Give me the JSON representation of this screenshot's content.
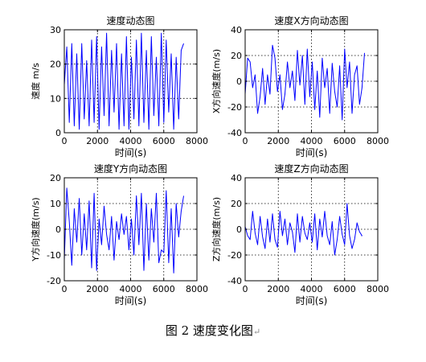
{
  "chart_data": [
    {
      "type": "line",
      "title": "速度动态图",
      "xlabel": "时间(s)",
      "ylabel": "速度 m/s",
      "xlim": [
        0,
        8000
      ],
      "ylim": [
        0,
        30
      ],
      "xticks": [
        0,
        2000,
        4000,
        6000,
        8000
      ],
      "yticks": [
        0,
        10,
        20,
        30
      ],
      "grid": "dotted",
      "line_color": "#0000ff",
      "series": [
        {
          "x": [
            0,
            150,
            300,
            450,
            600,
            750,
            900,
            1050,
            1200,
            1350,
            1500,
            1650,
            1800,
            1950,
            2100,
            2250,
            2400,
            2550,
            2700,
            2850,
            3000,
            3150,
            3300,
            3450,
            3600,
            3750,
            3900,
            4050,
            4200,
            4350,
            4500,
            4650,
            4800,
            4950,
            5100,
            5250,
            5400,
            5550,
            5700,
            5850,
            6000,
            6150,
            6300,
            6450,
            6600,
            6750,
            6900,
            7050,
            7200
          ],
          "values": [
            14,
            25,
            3,
            26,
            2,
            23,
            1,
            26,
            4,
            21,
            2,
            27,
            3,
            28,
            1,
            25,
            5,
            29,
            2,
            24,
            6,
            26,
            1,
            23,
            2,
            28,
            1,
            22,
            4,
            27,
            2,
            29,
            3,
            24,
            1,
            28,
            5,
            22,
            2,
            29,
            3,
            27,
            6,
            23,
            1,
            22,
            4,
            24,
            26
          ]
        }
      ]
    },
    {
      "type": "line",
      "title": "速度X方向动态图",
      "xlabel": "时间(s)",
      "ylabel": "X方向速度(m/s)",
      "xlim": [
        0,
        8000
      ],
      "ylim": [
        -40,
        40
      ],
      "xticks": [
        0,
        2000,
        4000,
        6000,
        8000
      ],
      "yticks": [
        -40,
        -20,
        0,
        20,
        40
      ],
      "grid": "dotted",
      "line_color": "#0000ff",
      "series": [
        {
          "x": [
            0,
            150,
            300,
            450,
            600,
            750,
            900,
            1050,
            1200,
            1350,
            1500,
            1650,
            1800,
            1950,
            2100,
            2250,
            2400,
            2550,
            2700,
            2850,
            3000,
            3150,
            3300,
            3450,
            3600,
            3750,
            3900,
            4050,
            4200,
            4350,
            4500,
            4650,
            4800,
            4950,
            5100,
            5250,
            5400,
            5550,
            5700,
            5850,
            6000,
            6150,
            6300,
            6450,
            6600,
            6750,
            6900,
            7050,
            7200
          ],
          "values": [
            -10,
            18,
            15,
            -5,
            5,
            -25,
            -12,
            10,
            -18,
            5,
            -10,
            28,
            18,
            -8,
            5,
            -22,
            -10,
            15,
            -5,
            8,
            -15,
            24,
            -3,
            20,
            -18,
            25,
            -12,
            15,
            -22,
            8,
            -28,
            18,
            -5,
            10,
            -25,
            14,
            -8,
            -20,
            12,
            -30,
            25,
            -5,
            15,
            -25,
            5,
            12,
            -18,
            -5,
            22
          ]
        }
      ]
    },
    {
      "type": "line",
      "title": "速度Y方向动态图",
      "xlabel": "时间(s)",
      "ylabel": "Y方向速度(m/s)",
      "xlim": [
        0,
        8000
      ],
      "ylim": [
        -20,
        20
      ],
      "xticks": [
        0,
        2000,
        4000,
        6000,
        8000
      ],
      "yticks": [
        -20,
        -10,
        0,
        10,
        20
      ],
      "grid": "dotted",
      "line_color": "#0000ff",
      "series": [
        {
          "x": [
            0,
            150,
            300,
            450,
            600,
            750,
            900,
            1050,
            1200,
            1350,
            1500,
            1650,
            1800,
            1950,
            2100,
            2250,
            2400,
            2550,
            2700,
            2850,
            3000,
            3150,
            3300,
            3450,
            3600,
            3750,
            3900,
            4050,
            4200,
            4350,
            4500,
            4650,
            4800,
            4950,
            5100,
            5250,
            5400,
            5550,
            5700,
            5850,
            6000,
            6150,
            6300,
            6450,
            6600,
            6750,
            6900,
            7050,
            7200
          ],
          "values": [
            -12,
            16,
            3,
            -14,
            8,
            -5,
            12,
            -10,
            6,
            -8,
            11,
            -15,
            14,
            -16,
            4,
            -6,
            9,
            -2,
            -8,
            5,
            -12,
            3,
            -4,
            6,
            -2,
            5,
            -8,
            4,
            -10,
            13,
            -6,
            14,
            -16,
            10,
            -12,
            8,
            -5,
            14,
            -13,
            -8,
            -9,
            15,
            -13,
            8,
            -17,
            10,
            -3,
            7,
            13
          ]
        }
      ]
    },
    {
      "type": "line",
      "title": "速度Z方向动态图",
      "xlabel": "时间(s)",
      "ylabel": "Z方向速度(m/s)",
      "xlim": [
        0,
        8000
      ],
      "ylim": [
        -40,
        40
      ],
      "xticks": [
        0,
        2000,
        4000,
        6000,
        8000
      ],
      "yticks": [
        -40,
        -20,
        0,
        20,
        40
      ],
      "grid": "dotted",
      "line_color": "#0000ff",
      "series": [
        {
          "x": [
            0,
            150,
            300,
            450,
            600,
            750,
            900,
            1050,
            1200,
            1350,
            1500,
            1650,
            1800,
            1950,
            2100,
            2250,
            2400,
            2550,
            2700,
            2850,
            3000,
            3150,
            3300,
            3450,
            3600,
            3750,
            3900,
            4050,
            4200,
            4350,
            4500,
            4650,
            4800,
            4950,
            5100,
            5250,
            5400,
            5550,
            5700,
            5850,
            6000,
            6150,
            6300,
            6450,
            6600,
            6750,
            6900,
            7050,
            7000
          ],
          "values": [
            2,
            -5,
            -8,
            14,
            -3,
            -12,
            10,
            -6,
            -15,
            8,
            -10,
            12,
            -8,
            -14,
            14,
            -5,
            8,
            -12,
            5,
            -2,
            -18,
            12,
            -10,
            10,
            -3,
            -8,
            5,
            -10,
            12,
            -16,
            8,
            -6,
            14,
            -5,
            -12,
            6,
            -20,
            -8,
            10,
            -4,
            -12,
            20,
            -5,
            -15,
            -8,
            5,
            -2,
            -5,
            -5
          ]
        }
      ]
    }
  ],
  "caption": {
    "text": "图 2  速度变化图",
    "mark": "↵"
  }
}
